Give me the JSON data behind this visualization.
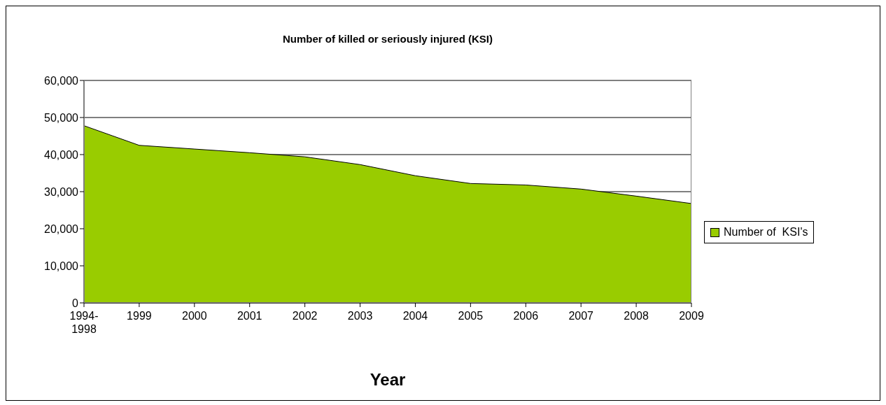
{
  "chart_data": {
    "type": "area",
    "title": "Number of killed or seriously injured (KSI)",
    "xlabel": "Year",
    "categories": [
      "1994-1998",
      "1999",
      "2000",
      "2001",
      "2002",
      "2003",
      "2004",
      "2005",
      "2006",
      "2007",
      "2008",
      "2009"
    ],
    "series": [
      {
        "name": "Number of  KSI's",
        "color": "#99cc00",
        "values": [
          47800,
          42500,
          41500,
          40500,
          39400,
          37300,
          34300,
          32200,
          31800,
          30700,
          28800,
          26800
        ]
      }
    ],
    "ylim": [
      0,
      60000
    ],
    "yticks": [
      0,
      {
        "value": 10000,
        "label": "10,000"
      },
      {
        "value": 20000,
        "label": "20,000"
      },
      {
        "value": 30000,
        "label": "30,000"
      },
      {
        "value": 40000,
        "label": "40,000"
      },
      {
        "value": 50000,
        "label": "50,000"
      },
      {
        "value": 60000,
        "label": "60,000"
      }
    ],
    "grid": "y",
    "legend": "right"
  }
}
